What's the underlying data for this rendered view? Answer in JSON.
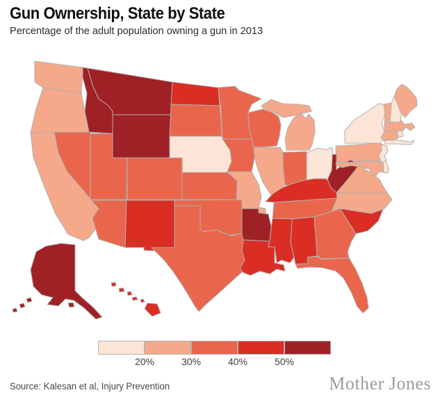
{
  "header": {
    "title": "Gun Ownership, State by State",
    "subtitle": "Percentage of the adult population owning a gun in 2013"
  },
  "footer": {
    "source": "Source: Kalesan et al, Injury Prevention",
    "brand": "Mother Jones"
  },
  "chart_data": {
    "type": "choropleth",
    "title": "Gun Ownership, State by State",
    "subtitle": "Percentage of the adult population owning a gun in 2013",
    "unit": "percent of adult population owning a gun",
    "legend": {
      "position": "bottom-center",
      "tick_labels": [
        "20%",
        "30%",
        "40%",
        "50%"
      ],
      "border_color": "#b3b3b3",
      "bins": [
        {
          "range": "<20%",
          "color": "#fce4d6"
        },
        {
          "range": "20-30%",
          "color": "#f5a98a"
        },
        {
          "range": "30-40%",
          "color": "#e9664c"
        },
        {
          "range": "40-50%",
          "color": "#da2d24"
        },
        {
          "range": "50%+",
          "color": "#a02125"
        }
      ]
    },
    "map": {
      "projection": "albers-usa",
      "state_border_color": "#b0b0b0",
      "background": "#ffffff"
    },
    "states": [
      {
        "code": "AL",
        "name": "Alabama",
        "bin": 4
      },
      {
        "code": "AK",
        "name": "Alaska",
        "bin": 5
      },
      {
        "code": "AZ",
        "name": "Arizona",
        "bin": 3
      },
      {
        "code": "AR",
        "name": "Arkansas",
        "bin": 5
      },
      {
        "code": "CA",
        "name": "California",
        "bin": 2
      },
      {
        "code": "CO",
        "name": "Colorado",
        "bin": 3
      },
      {
        "code": "CT",
        "name": "Connecticut",
        "bin": 2
      },
      {
        "code": "DE",
        "name": "Delaware",
        "bin": 1
      },
      {
        "code": "FL",
        "name": "Florida",
        "bin": 3
      },
      {
        "code": "GA",
        "name": "Georgia",
        "bin": 3
      },
      {
        "code": "HI",
        "name": "Hawaii",
        "bin": 4
      },
      {
        "code": "ID",
        "name": "Idaho",
        "bin": 5
      },
      {
        "code": "IL",
        "name": "Illinois",
        "bin": 2
      },
      {
        "code": "IN",
        "name": "Indiana",
        "bin": 3
      },
      {
        "code": "IA",
        "name": "Iowa",
        "bin": 3
      },
      {
        "code": "KS",
        "name": "Kansas",
        "bin": 3
      },
      {
        "code": "KY",
        "name": "Kentucky",
        "bin": 4
      },
      {
        "code": "LA",
        "name": "Louisiana",
        "bin": 4
      },
      {
        "code": "ME",
        "name": "Maine",
        "bin": 2
      },
      {
        "code": "MD",
        "name": "Maryland",
        "bin": 2
      },
      {
        "code": "MA",
        "name": "Massachusetts",
        "bin": 2
      },
      {
        "code": "MI",
        "name": "Michigan",
        "bin": 2
      },
      {
        "code": "MN",
        "name": "Minnesota",
        "bin": 3
      },
      {
        "code": "MS",
        "name": "Mississippi",
        "bin": 4
      },
      {
        "code": "MO",
        "name": "Missouri",
        "bin": 2
      },
      {
        "code": "MT",
        "name": "Montana",
        "bin": 5
      },
      {
        "code": "NE",
        "name": "Nebraska",
        "bin": 1
      },
      {
        "code": "NV",
        "name": "Nevada",
        "bin": 3
      },
      {
        "code": "NH",
        "name": "New Hampshire",
        "bin": 1
      },
      {
        "code": "NJ",
        "name": "New Jersey",
        "bin": 1
      },
      {
        "code": "NM",
        "name": "New Mexico",
        "bin": 4
      },
      {
        "code": "NY",
        "name": "New York",
        "bin": 1
      },
      {
        "code": "NC",
        "name": "North Carolina",
        "bin": 2
      },
      {
        "code": "ND",
        "name": "North Dakota",
        "bin": 4
      },
      {
        "code": "OH",
        "name": "Ohio",
        "bin": 1
      },
      {
        "code": "OK",
        "name": "Oklahoma",
        "bin": 3
      },
      {
        "code": "OR",
        "name": "Oregon",
        "bin": 2
      },
      {
        "code": "PA",
        "name": "Pennsylvania",
        "bin": 2
      },
      {
        "code": "RI",
        "name": "Rhode Island",
        "bin": 1
      },
      {
        "code": "SC",
        "name": "South Carolina",
        "bin": 4
      },
      {
        "code": "SD",
        "name": "South Dakota",
        "bin": 3
      },
      {
        "code": "TN",
        "name": "Tennessee",
        "bin": 3
      },
      {
        "code": "TX",
        "name": "Texas",
        "bin": 3
      },
      {
        "code": "UT",
        "name": "Utah",
        "bin": 3
      },
      {
        "code": "VT",
        "name": "Vermont",
        "bin": 2
      },
      {
        "code": "VA",
        "name": "Virginia",
        "bin": 2
      },
      {
        "code": "WA",
        "name": "Washington",
        "bin": 2
      },
      {
        "code": "WV",
        "name": "West Virginia",
        "bin": 5
      },
      {
        "code": "WI",
        "name": "Wisconsin",
        "bin": 3
      },
      {
        "code": "WY",
        "name": "Wyoming",
        "bin": 5
      }
    ]
  }
}
